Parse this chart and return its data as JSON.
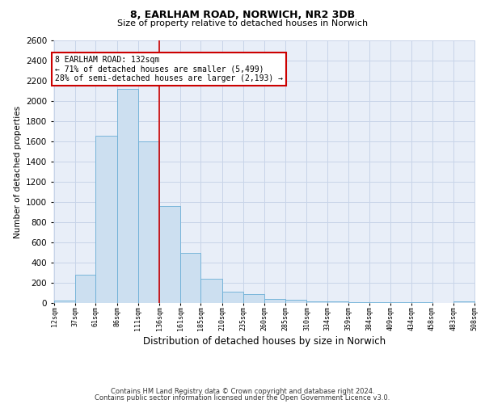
{
  "title1": "8, EARLHAM ROAD, NORWICH, NR2 3DB",
  "title2": "Size of property relative to detached houses in Norwich",
  "xlabel": "Distribution of detached houses by size in Norwich",
  "ylabel": "Number of detached properties",
  "footer1": "Contains HM Land Registry data © Crown copyright and database right 2024.",
  "footer2": "Contains public sector information licensed under the Open Government Licence v3.0.",
  "annotation_title": "8 EARLHAM ROAD: 132sqm",
  "annotation_line1": "← 71% of detached houses are smaller (5,499)",
  "annotation_line2": "28% of semi-detached houses are larger (2,193) →",
  "bar_left_edges": [
    12,
    37,
    61,
    86,
    111,
    136,
    161,
    185,
    210,
    235,
    260,
    285,
    310,
    334,
    359,
    384,
    409,
    434,
    458,
    483
  ],
  "bar_widths": [
    25,
    24,
    25,
    25,
    25,
    25,
    24,
    25,
    25,
    25,
    25,
    25,
    24,
    25,
    25,
    25,
    25,
    24,
    25,
    25
  ],
  "bar_heights": [
    25,
    280,
    1660,
    2120,
    1600,
    960,
    500,
    240,
    110,
    90,
    42,
    32,
    18,
    14,
    10,
    7,
    7,
    8,
    4,
    14
  ],
  "tick_labels": [
    "12sqm",
    "37sqm",
    "61sqm",
    "86sqm",
    "111sqm",
    "136sqm",
    "161sqm",
    "185sqm",
    "210sqm",
    "235sqm",
    "260sqm",
    "285sqm",
    "310sqm",
    "334sqm",
    "359sqm",
    "384sqm",
    "409sqm",
    "434sqm",
    "458sqm",
    "483sqm",
    "508sqm"
  ],
  "bar_color": "#ccdff0",
  "bar_edge_color": "#6aaed6",
  "vline_color": "#cc0000",
  "vline_x": 136,
  "annotation_box_color": "#cc0000",
  "grid_color": "#c8d4e8",
  "bg_color": "#e8eef8",
  "ylim": [
    0,
    2600
  ],
  "yticks": [
    0,
    200,
    400,
    600,
    800,
    1000,
    1200,
    1400,
    1600,
    1800,
    2000,
    2200,
    2400,
    2600
  ],
  "title1_fontsize": 9,
  "title2_fontsize": 8,
  "ylabel_fontsize": 7.5,
  "xlabel_fontsize": 8.5
}
